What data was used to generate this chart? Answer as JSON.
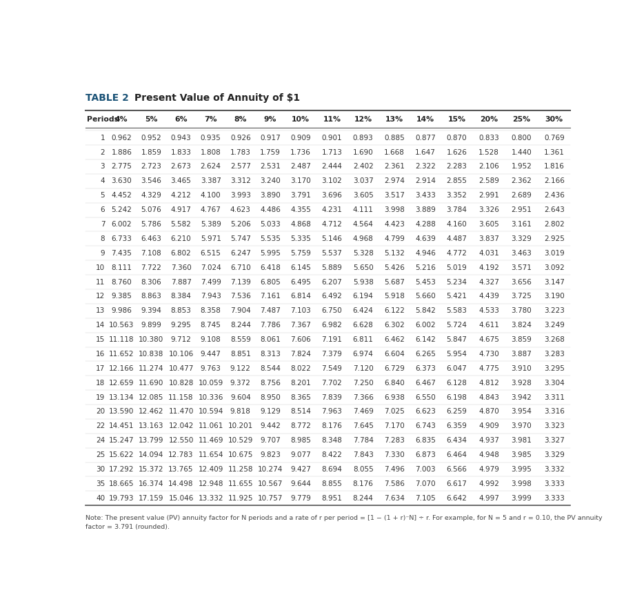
{
  "title": "TABLE 2",
  "subtitle": "Present Value of Annuity of $1",
  "col_headers": [
    "Periods",
    "4%",
    "5%",
    "6%",
    "7%",
    "8%",
    "9%",
    "10%",
    "11%",
    "12%",
    "13%",
    "14%",
    "15%",
    "20%",
    "25%",
    "30%"
  ],
  "rows": [
    [
      "1",
      "0.962",
      "0.952",
      "0.943",
      "0.935",
      "0.926",
      "0.917",
      "0.909",
      "0.901",
      "0.893",
      "0.885",
      "0.877",
      "0.870",
      "0.833",
      "0.800",
      "0.769"
    ],
    [
      "2",
      "1.886",
      "1.859",
      "1.833",
      "1.808",
      "1.783",
      "1.759",
      "1.736",
      "1.713",
      "1.690",
      "1.668",
      "1.647",
      "1.626",
      "1.528",
      "1.440",
      "1.361"
    ],
    [
      "3",
      "2.775",
      "2.723",
      "2.673",
      "2.624",
      "2.577",
      "2.531",
      "2.487",
      "2.444",
      "2.402",
      "2.361",
      "2.322",
      "2.283",
      "2.106",
      "1.952",
      "1.816"
    ],
    [
      "4",
      "3.630",
      "3.546",
      "3.465",
      "3.387",
      "3.312",
      "3.240",
      "3.170",
      "3.102",
      "3.037",
      "2.974",
      "2.914",
      "2.855",
      "2.589",
      "2.362",
      "2.166"
    ],
    [
      "5",
      "4.452",
      "4.329",
      "4.212",
      "4.100",
      "3.993",
      "3.890",
      "3.791",
      "3.696",
      "3.605",
      "3.517",
      "3.433",
      "3.352",
      "2.991",
      "2.689",
      "2.436"
    ],
    [
      "6",
      "5.242",
      "5.076",
      "4.917",
      "4.767",
      "4.623",
      "4.486",
      "4.355",
      "4.231",
      "4.111",
      "3.998",
      "3.889",
      "3.784",
      "3.326",
      "2.951",
      "2.643"
    ],
    [
      "7",
      "6.002",
      "5.786",
      "5.582",
      "5.389",
      "5.206",
      "5.033",
      "4.868",
      "4.712",
      "4.564",
      "4.423",
      "4.288",
      "4.160",
      "3.605",
      "3.161",
      "2.802"
    ],
    [
      "8",
      "6.733",
      "6.463",
      "6.210",
      "5.971",
      "5.747",
      "5.535",
      "5.335",
      "5.146",
      "4.968",
      "4.799",
      "4.639",
      "4.487",
      "3.837",
      "3.329",
      "2.925"
    ],
    [
      "9",
      "7.435",
      "7.108",
      "6.802",
      "6.515",
      "6.247",
      "5.995",
      "5.759",
      "5.537",
      "5.328",
      "5.132",
      "4.946",
      "4.772",
      "4.031",
      "3.463",
      "3.019"
    ],
    [
      "10",
      "8.111",
      "7.722",
      "7.360",
      "7.024",
      "6.710",
      "6.418",
      "6.145",
      "5.889",
      "5.650",
      "5.426",
      "5.216",
      "5.019",
      "4.192",
      "3.571",
      "3.092"
    ],
    [
      "11",
      "8.760",
      "8.306",
      "7.887",
      "7.499",
      "7.139",
      "6.805",
      "6.495",
      "6.207",
      "5.938",
      "5.687",
      "5.453",
      "5.234",
      "4.327",
      "3.656",
      "3.147"
    ],
    [
      "12",
      "9.385",
      "8.863",
      "8.384",
      "7.943",
      "7.536",
      "7.161",
      "6.814",
      "6.492",
      "6.194",
      "5.918",
      "5.660",
      "5.421",
      "4.439",
      "3.725",
      "3.190"
    ],
    [
      "13",
      "9.986",
      "9.394",
      "8.853",
      "8.358",
      "7.904",
      "7.487",
      "7.103",
      "6.750",
      "6.424",
      "6.122",
      "5.842",
      "5.583",
      "4.533",
      "3.780",
      "3.223"
    ],
    [
      "14",
      "10.563",
      "9.899",
      "9.295",
      "8.745",
      "8.244",
      "7.786",
      "7.367",
      "6.982",
      "6.628",
      "6.302",
      "6.002",
      "5.724",
      "4.611",
      "3.824",
      "3.249"
    ],
    [
      "15",
      "11.118",
      "10.380",
      "9.712",
      "9.108",
      "8.559",
      "8.061",
      "7.606",
      "7.191",
      "6.811",
      "6.462",
      "6.142",
      "5.847",
      "4.675",
      "3.859",
      "3.268"
    ],
    [
      "16",
      "11.652",
      "10.838",
      "10.106",
      "9.447",
      "8.851",
      "8.313",
      "7.824",
      "7.379",
      "6.974",
      "6.604",
      "6.265",
      "5.954",
      "4.730",
      "3.887",
      "3.283"
    ],
    [
      "17",
      "12.166",
      "11.274",
      "10.477",
      "9.763",
      "9.122",
      "8.544",
      "8.022",
      "7.549",
      "7.120",
      "6.729",
      "6.373",
      "6.047",
      "4.775",
      "3.910",
      "3.295"
    ],
    [
      "18",
      "12.659",
      "11.690",
      "10.828",
      "10.059",
      "9.372",
      "8.756",
      "8.201",
      "7.702",
      "7.250",
      "6.840",
      "6.467",
      "6.128",
      "4.812",
      "3.928",
      "3.304"
    ],
    [
      "19",
      "13.134",
      "12.085",
      "11.158",
      "10.336",
      "9.604",
      "8.950",
      "8.365",
      "7.839",
      "7.366",
      "6.938",
      "6.550",
      "6.198",
      "4.843",
      "3.942",
      "3.311"
    ],
    [
      "20",
      "13.590",
      "12.462",
      "11.470",
      "10.594",
      "9.818",
      "9.129",
      "8.514",
      "7.963",
      "7.469",
      "7.025",
      "6.623",
      "6.259",
      "4.870",
      "3.954",
      "3.316"
    ],
    [
      "22",
      "14.451",
      "13.163",
      "12.042",
      "11.061",
      "10.201",
      "9.442",
      "8.772",
      "8.176",
      "7.645",
      "7.170",
      "6.743",
      "6.359",
      "4.909",
      "3.970",
      "3.323"
    ],
    [
      "24",
      "15.247",
      "13.799",
      "12.550",
      "11.469",
      "10.529",
      "9.707",
      "8.985",
      "8.348",
      "7.784",
      "7.283",
      "6.835",
      "6.434",
      "4.937",
      "3.981",
      "3.327"
    ],
    [
      "25",
      "15.622",
      "14.094",
      "12.783",
      "11.654",
      "10.675",
      "9.823",
      "9.077",
      "8.422",
      "7.843",
      "7.330",
      "6.873",
      "6.464",
      "4.948",
      "3.985",
      "3.329"
    ],
    [
      "30",
      "17.292",
      "15.372",
      "13.765",
      "12.409",
      "11.258",
      "10.274",
      "9.427",
      "8.694",
      "8.055",
      "7.496",
      "7.003",
      "6.566",
      "4.979",
      "3.995",
      "3.332"
    ],
    [
      "35",
      "18.665",
      "16.374",
      "14.498",
      "12.948",
      "11.655",
      "10.567",
      "9.644",
      "8.855",
      "8.176",
      "7.586",
      "7.070",
      "6.617",
      "4.992",
      "3.998",
      "3.333"
    ],
    [
      "40",
      "19.793",
      "17.159",
      "15.046",
      "13.332",
      "11.925",
      "10.757",
      "9.779",
      "8.951",
      "8.244",
      "7.634",
      "7.105",
      "6.642",
      "4.997",
      "3.999",
      "3.333"
    ]
  ],
  "note": "Note: The present value (PV) annuity factor for N periods and a rate of r per period = [1 − (1 + r)⁻N] ÷ r. For example, for N = 5 and r = 0.10, the PV annuity\nfactor = 3.791 (rounded).",
  "bg_color": "#ffffff",
  "title_color": "#1a5276",
  "text_color": "#333333",
  "font_size": 7.5,
  "header_font_size": 7.8
}
